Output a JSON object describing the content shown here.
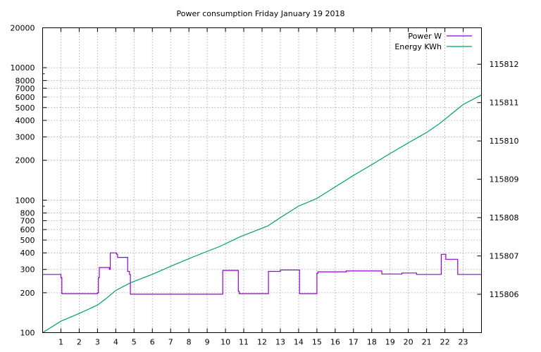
{
  "chart_data": {
    "type": "line",
    "title": "Power consumption Friday January 19 2018",
    "xlabel": "",
    "ylabel": "",
    "y2label": "",
    "x_range": [
      0,
      24
    ],
    "x_ticks": [
      1,
      2,
      3,
      4,
      5,
      6,
      7,
      8,
      9,
      10,
      11,
      12,
      13,
      14,
      15,
      16,
      17,
      18,
      19,
      20,
      21,
      22,
      23
    ],
    "y_range": [
      100,
      20000
    ],
    "y_scale": "log",
    "y_ticks": [
      {
        "value": 100,
        "label": "100"
      },
      {
        "value": 200,
        "label": "200"
      },
      {
        "value": 300,
        "label": "300"
      },
      {
        "value": 400,
        "label": "400"
      },
      {
        "value": 500,
        "label": "500"
      },
      {
        "value": 600,
        "label": "600"
      },
      {
        "value": 700,
        "label": "700"
      },
      {
        "value": 800,
        "label": "800"
      },
      {
        "value": 1000,
        "label": "1000"
      },
      {
        "value": 2000,
        "label": "2000"
      },
      {
        "value": 3000,
        "label": "3000"
      },
      {
        "value": 4000,
        "label": "4000"
      },
      {
        "value": 5000,
        "label": "5000"
      },
      {
        "value": 6000,
        "label": "6000"
      },
      {
        "value": 7000,
        "label": "7000"
      },
      {
        "value": 8000,
        "label": "8000"
      },
      {
        "value": 10000,
        "label": "10000"
      },
      {
        "value": 20000,
        "label": "20000"
      }
    ],
    "y2_range": [
      115805.0,
      115812.95
    ],
    "y2_scale": "linear",
    "y2_ticks": [
      "115806",
      "115807",
      "115808",
      "115809",
      "115810",
      "115811",
      "115812"
    ],
    "grid": true,
    "legend_position": "top-right",
    "series": [
      {
        "name": "Power W",
        "axis": "y1",
        "color": "#9400d3",
        "step": true,
        "x": [
          0,
          1.0,
          1.05,
          3.0,
          3.05,
          3.1,
          3.65,
          3.7,
          4.05,
          4.1,
          4.6,
          4.65,
          4.75,
          4.8,
          9.8,
          9.85,
          10.6,
          10.7,
          10.75,
          12.3,
          12.35,
          12.95,
          13.0,
          14.0,
          14.05,
          14.9,
          15.0,
          15.05,
          16.55,
          16.6,
          18.5,
          18.55,
          19.6,
          19.65,
          20.4,
          20.45,
          21.75,
          21.8,
          22.0,
          22.05,
          22.65,
          22.7,
          24.0
        ],
        "y": [
          275,
          260,
          197,
          200,
          260,
          310,
          300,
          400,
          390,
          370,
          370,
          290,
          275,
          195,
          195,
          295,
          295,
          205,
          197,
          197,
          290,
          290,
          297,
          297,
          197,
          197,
          280,
          288,
          288,
          292,
          292,
          277,
          277,
          282,
          282,
          275,
          275,
          390,
          390,
          358,
          358,
          275,
          275
        ]
      },
      {
        "name": "Energy KWh",
        "axis": "y2",
        "color": "#009e73",
        "step": false,
        "x": [
          0,
          1,
          2,
          3,
          3.5,
          4,
          4.8,
          6,
          7,
          8,
          9,
          9.7,
          10.8,
          12.3,
          13,
          14,
          15,
          16,
          17,
          18,
          19,
          20,
          21,
          21.7,
          22.4,
          23,
          24
        ],
        "y": [
          115805.0,
          115805.3,
          115805.5,
          115805.72,
          115805.9,
          115806.1,
          115806.3,
          115806.52,
          115806.73,
          115806.93,
          115807.12,
          115807.25,
          115807.5,
          115807.78,
          115808.0,
          115808.3,
          115808.5,
          115808.8,
          115809.1,
          115809.38,
          115809.67,
          115809.95,
          115810.22,
          115810.45,
          115810.72,
          115810.95,
          115811.2
        ]
      }
    ]
  }
}
